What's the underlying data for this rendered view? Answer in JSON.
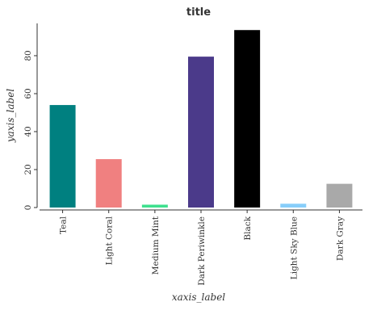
{
  "chart_data": {
    "type": "bar",
    "title": "title",
    "xlabel": "xaxis_label",
    "ylabel": "yaxis_label",
    "categories": [
      "Teal",
      "Light Coral",
      "Medium Mint",
      "Dark Periwinkle",
      "Black",
      "Light Sky Blue",
      "Dark Gray"
    ],
    "values": [
      54,
      25.5,
      1.5,
      79.5,
      93.5,
      2,
      12.5
    ],
    "colors": [
      "#008080",
      "#f08080",
      "#3ee08e",
      "#4b3a8a",
      "#000000",
      "#87cefa",
      "#a9a9a9"
    ],
    "ylim": [
      0,
      97
    ],
    "yticks": [
      0,
      20,
      40,
      60,
      80
    ],
    "grid": false,
    "legend": "none"
  }
}
